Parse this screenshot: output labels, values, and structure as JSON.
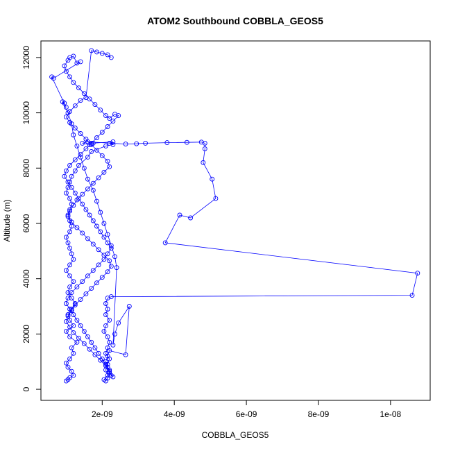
{
  "chart_data": {
    "type": "line",
    "title": "ATOM2 Southbound COBBLA_GEOS5",
    "xlabel": "COBBLA_GEOS5",
    "ylabel": "Altitude (m)",
    "xlim": [
      3e-10,
      1.11e-08
    ],
    "ylim": [
      -400,
      12600
    ],
    "x_ticks": [
      {
        "value": 2e-09,
        "label": "2e-09"
      },
      {
        "value": 4e-09,
        "label": "4e-09"
      },
      {
        "value": 6e-09,
        "label": "6e-09"
      },
      {
        "value": 8e-09,
        "label": "8e-09"
      },
      {
        "value": 1e-08,
        "label": "1e-08"
      }
    ],
    "y_ticks": [
      {
        "value": 0,
        "label": "0"
      },
      {
        "value": 2000,
        "label": "2000"
      },
      {
        "value": 4000,
        "label": "4000"
      },
      {
        "value": 6000,
        "label": "6000"
      },
      {
        "value": 8000,
        "label": "8000"
      },
      {
        "value": 10000,
        "label": "10000"
      },
      {
        "value": 12000,
        "label": "12000"
      }
    ],
    "grid": false,
    "series_color": "#0000ff",
    "marker": "open-circle",
    "series": [
      {
        "x": [
          1e-09,
          1.05e-09,
          1.1e-09,
          1.2e-09,
          1.15e-09,
          1.05e-09,
          1e-09,
          1.1e-09,
          1.2e-09,
          1.15e-09,
          1.3e-09,
          1.1e-09,
          1e-09,
          1.2e-09,
          1.1e-09,
          1.05e-09,
          1.15e-09,
          1.25e-09,
          1.15e-09,
          1.05e-09,
          1.1e-09,
          1.2e-09,
          1.1e-09,
          1e-09,
          1.1e-09,
          1.2e-09,
          1.15e-09,
          1.1e-09,
          1.05e-09,
          1e-09,
          1.1e-09,
          1.15e-09,
          1.1e-09,
          1.05e-09,
          1.1e-09,
          1.15e-09,
          1.1e-09,
          1e-09,
          1.05e-09,
          1.1e-09,
          1.15e-09,
          1.25e-09,
          1.35e-09,
          1.6e-09,
          1.7e-09,
          2.1e-09,
          2.3e-09,
          2.2e-09,
          2.3e-09,
          1.75e-09,
          1.65e-09,
          1.45e-09,
          1.6e-09,
          2.65e-09,
          2.95e-09,
          3.2e-09,
          3.8e-09,
          4.35e-09,
          4.75e-09,
          4.85e-09,
          4.85e-09,
          4.8e-09,
          5.05e-09,
          5.15e-09,
          4.45e-09,
          4.15e-09,
          3.75e-09,
          1.075e-08,
          1.06e-08,
          2.25e-09,
          2.15e-09,
          2.1e-09,
          2.15e-09,
          2.1e-09,
          2.2e-09,
          2.1e-09,
          2.05e-09,
          2.15e-09,
          2.2e-09,
          2.15e-09,
          2.1e-09,
          2.2e-09,
          2.15e-09,
          2.1e-09,
          2.15e-09,
          2.05e-09,
          2.1e-09,
          2.15e-09,
          2.2e-09,
          2.15e-09,
          2.1e-09,
          2.15e-09,
          2.2e-09,
          2.65e-09,
          2.75e-09,
          2.45e-09,
          2.35e-09,
          2.3e-09,
          2.4e-09,
          2.35e-09,
          2.25e-09,
          2.15e-09,
          2.05e-09,
          1.95e-09,
          1.85e-09,
          1.75e-09,
          1.6e-09,
          1.5e-09,
          1.4e-09,
          1.3e-09,
          1.2e-09,
          1.15e-09,
          1.05e-09,
          9e-10,
          9.5e-10,
          1e-09,
          6e-10,
          6.5e-10,
          1.4e-09,
          1.3e-09,
          1.2e-09,
          1.1e-09,
          1.05e-09,
          9.5e-10,
          1e-09,
          1.1e-09,
          1.2e-09,
          1.35e-09,
          1.5e-09,
          1.65e-09,
          1.8e-09,
          1.95e-09,
          2.1e-09,
          2.2e-09,
          2.35e-09,
          2.45e-09,
          2.3e-09,
          2.15e-09,
          2e-09,
          1.85e-09,
          1.7e-09,
          1.55e-09,
          1.4e-09,
          1.25e-09,
          1.1e-09,
          1e-09,
          9.5e-10,
          1.05e-09,
          1.15e-09,
          1.25e-09,
          1.35e-09,
          1.45e-09,
          1.55e-09,
          1.65e-09,
          1.75e-09,
          1.85e-09,
          1.95e-09,
          2.05e-09,
          2.15e-09,
          2.25e-09,
          2.15e-09,
          2.05e-09,
          1.9e-09,
          1.75e-09,
          1.6e-09,
          1.45e-09,
          1.3e-09,
          1.15e-09,
          1.05e-09,
          1e-09,
          1.1e-09,
          1.2e-09,
          1.3e-09,
          1.4e-09,
          1.5e-09,
          1.6e-09,
          1.7e-09,
          1.8e-09,
          1.9e-09,
          2e-09,
          2.1e-09,
          2.2e-09,
          2.25e-09,
          2.3e-09,
          2.2e-09,
          2.1e-09,
          1.95e-09,
          1.8e-09,
          1.65e-09,
          1.5e-09,
          1.35e-09,
          1.2e-09,
          1.1e-09,
          1e-09,
          1.05e-09,
          1.15e-09,
          1.25e-09,
          1.4e-09,
          1.55e-09,
          1.7e-09,
          1.85e-09,
          2e-09,
          2.15e-09,
          2.25e-09,
          2.2e-09,
          2.05e-09,
          1.9e-09,
          1.75e-09,
          1.6e-09,
          1.45e-09,
          1.3e-09,
          1.15e-09,
          1.05e-09,
          1.1e-09,
          1.2e-09,
          1.3e-09,
          1.45e-09,
          1.6e-09,
          1.75e-09,
          1.9e-09,
          2.05e-09,
          2.2e-09,
          2.15e-09,
          2e-09,
          1.85e-09,
          1.7e-09,
          1.55e-09,
          1.4e-09,
          1.25e-09,
          1.1e-09,
          1e-09,
          1.1e-09,
          1.25e-09,
          1.4e-09,
          1.55e-09,
          1.7e-09,
          1.85e-09,
          2e-09,
          2.15e-09,
          2.25e-09
        ],
        "y": [
          300,
          350,
          420,
          500,
          650,
          800,
          950,
          1100,
          1300,
          1500,
          1700,
          1900,
          2100,
          2300,
          2500,
          2700,
          2900,
          3100,
          3300,
          3500,
          3700,
          3900,
          4100,
          4300,
          4500,
          4700,
          4900,
          5100,
          5300,
          5500,
          5700,
          5900,
          6100,
          6300,
          6500,
          6700,
          6900,
          7100,
          7300,
          7500,
          7700,
          7900,
          8100,
          8400,
          8600,
          8800,
          8850,
          8900,
          8950,
          8900,
          8850,
          8900,
          8950,
          8870,
          8880,
          8900,
          8920,
          8930,
          8940,
          8900,
          8700,
          8200,
          7600,
          6900,
          6200,
          6300,
          5300,
          4200,
          3400,
          3350,
          3300,
          3100,
          2900,
          2700,
          2500,
          2300,
          2100,
          1900,
          1700,
          1500,
          1300,
          1100,
          900,
          700,
          500,
          350,
          300,
          400,
          600,
          800,
          1000,
          1200,
          1400,
          1250,
          3000,
          2400,
          2000,
          1600,
          4400,
          4800,
          5200,
          5600,
          6000,
          6400,
          6800,
          7200,
          7600,
          8000,
          8400,
          8800,
          9200,
          9600,
          10000,
          10400,
          10350,
          10200,
          11300,
          11250,
          11850,
          11800,
          12050,
          12000,
          11900,
          11700,
          11500,
          11300,
          11100,
          10900,
          10700,
          10500,
          10300,
          10100,
          9900,
          9800,
          9950,
          9900,
          9700,
          9500,
          9300,
          9100,
          8900,
          8700,
          8500,
          8300,
          8100,
          7900,
          7700,
          7500,
          7300,
          7100,
          6900,
          6700,
          6500,
          6300,
          6100,
          5900,
          5700,
          5500,
          5300,
          5100,
          4900,
          4700,
          4500,
          4300,
          4100,
          3900,
          3700,
          3500,
          3300,
          3100,
          2900,
          2700,
          2500,
          2300,
          2100,
          1900,
          1700,
          1500,
          1300,
          1100,
          900,
          700,
          500,
          450,
          650,
          850,
          1050,
          1250,
          1450,
          1650,
          1850,
          2050,
          2250,
          2450,
          2650,
          2850,
          3050,
          3250,
          3450,
          3650,
          3850,
          4050,
          4250,
          4450,
          4650,
          4850,
          5050,
          5250,
          5450,
          5650,
          5850,
          6050,
          6250,
          6450,
          6650,
          6850,
          7050,
          7250,
          7450,
          7650,
          7850,
          8050,
          8250,
          8450,
          8650,
          8850,
          9050,
          9250,
          9450,
          9650,
          9850,
          10050,
          10250,
          10450,
          10550,
          12250,
          12200,
          12150,
          12100,
          12000
        ]
      }
    ]
  }
}
